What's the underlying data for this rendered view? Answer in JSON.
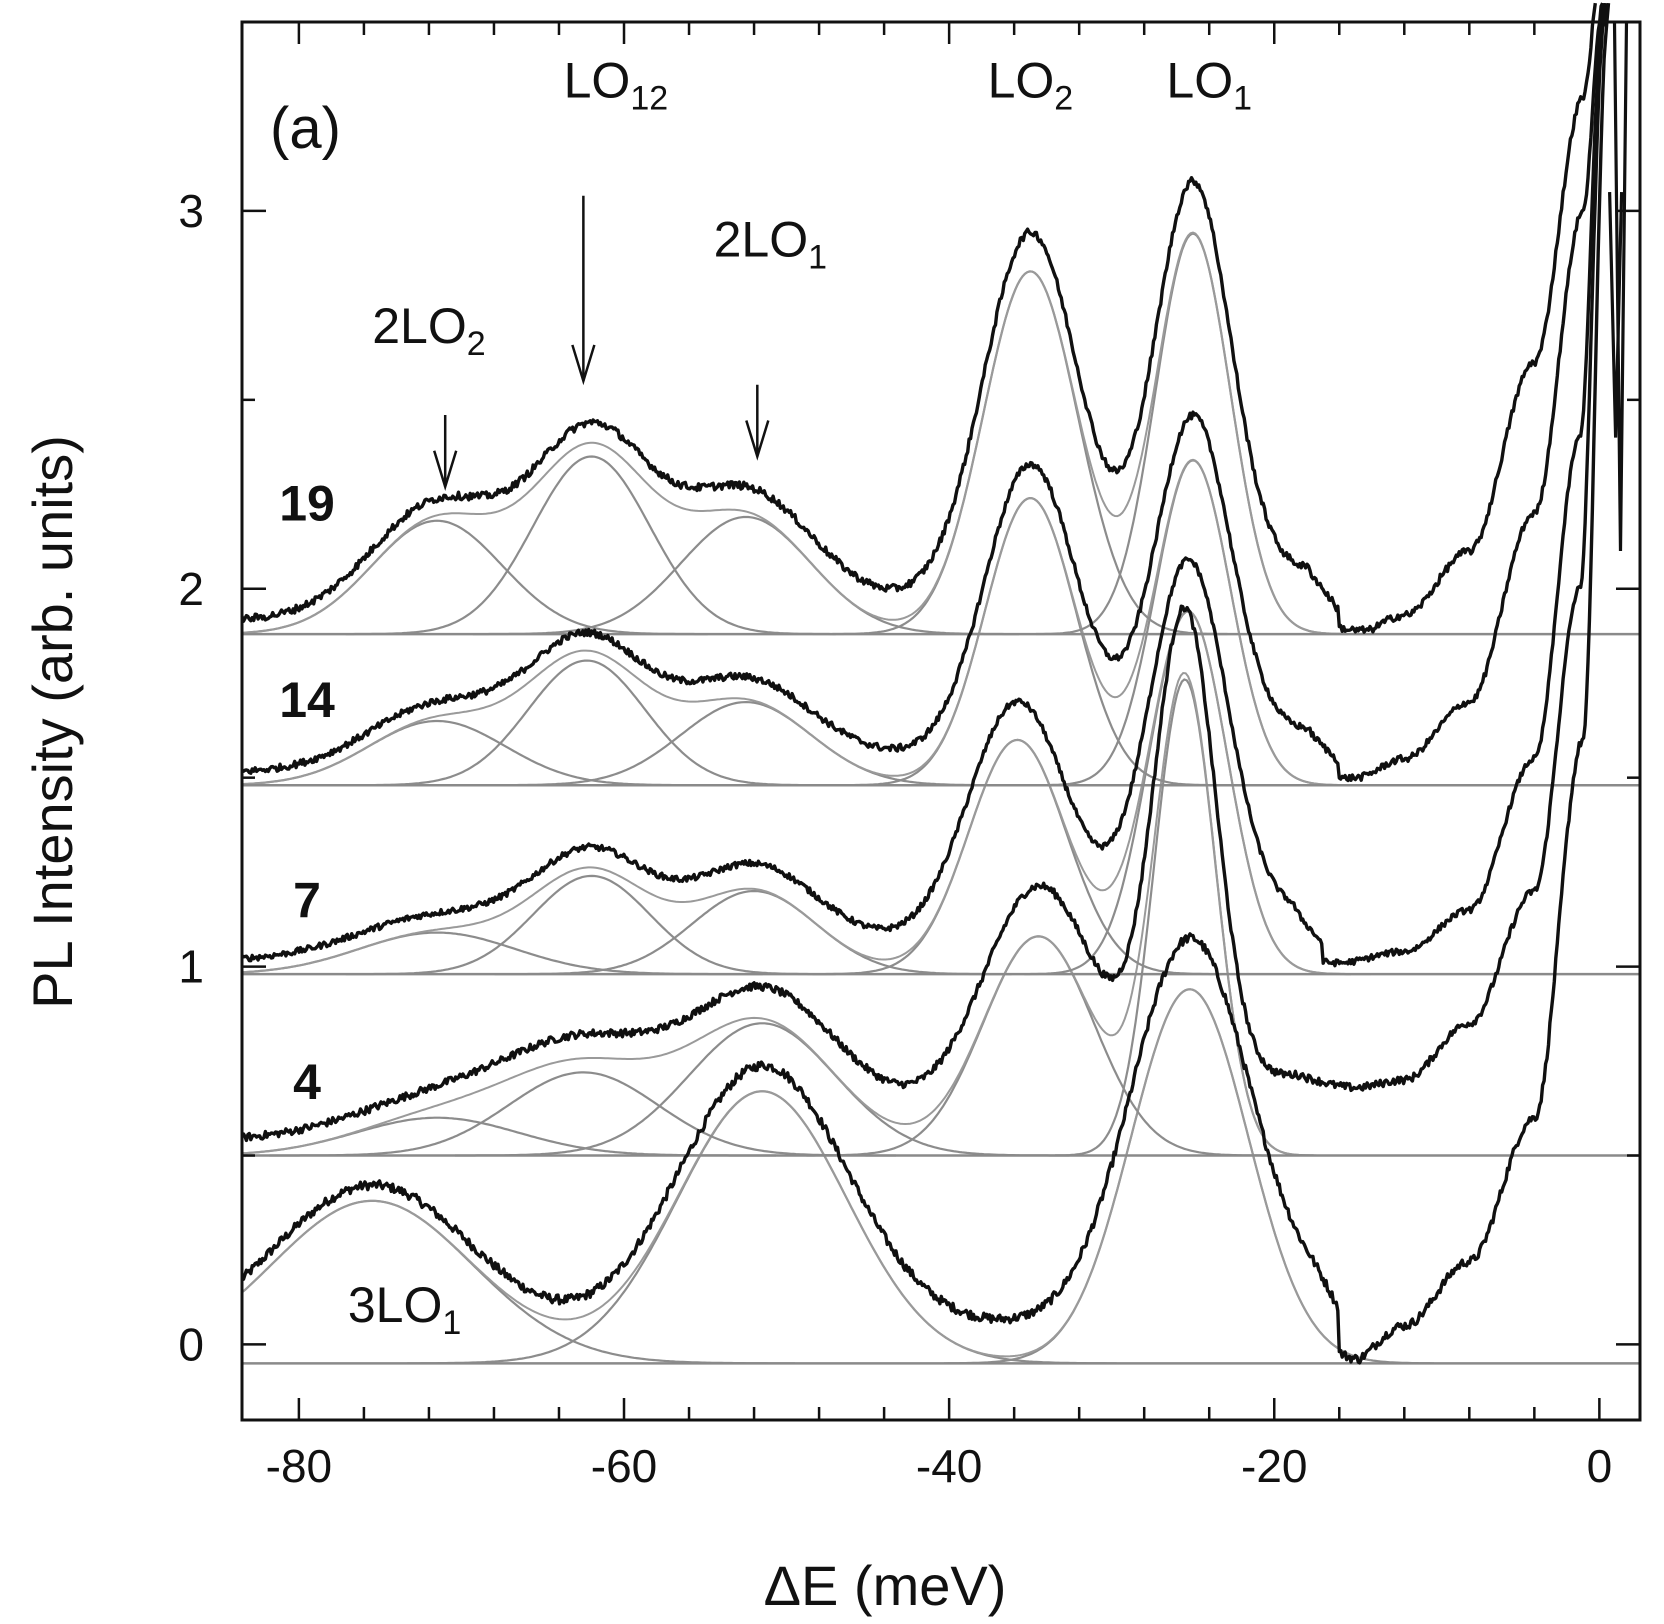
{
  "chart_data": {
    "type": "line",
    "panel_label": "(a)",
    "xlabel": "ΔE (meV)",
    "ylabel": "PL Intensity (arb. units)",
    "xlim": [
      -83.5,
      2.5
    ],
    "ylim": [
      -0.2,
      3.5
    ],
    "x_ticks": [
      -80,
      -60,
      -40,
      -20,
      0
    ],
    "y_ticks": [
      0,
      1,
      2,
      3
    ],
    "x_tick_labels": [
      "-80",
      "-60",
      "-40",
      "-20",
      "0"
    ],
    "y_tick_labels": [
      "0",
      "1",
      "2",
      "3"
    ],
    "x_minor_step": 4,
    "series": [
      {
        "name": "3LO1",
        "label": "",
        "baseline": -0.05,
        "peaks": [
          {
            "name": "3LO1",
            "center": -75.5,
            "amp": 0.43,
            "width": 6.2
          },
          {
            "name": "2LO1",
            "center": -51.5,
            "amp": 0.72,
            "width": 5.2
          },
          {
            "name": "LO1",
            "center": -25.2,
            "amp": 0.99,
            "width": 3.6
          }
        ],
        "background": {
          "amp": 0.06,
          "decay": 4.0
        },
        "valley_profile": [
          [
            -18,
            0.0
          ],
          [
            -15.5,
            -0.05
          ],
          [
            -12,
            0.05
          ],
          [
            -8,
            0.22
          ],
          [
            -4,
            0.6
          ],
          [
            -1,
            1.6
          ],
          [
            0.5,
            3.5
          ]
        ],
        "noise": 0.012
      },
      {
        "name": "4",
        "label": "4",
        "baseline": 0.5,
        "peaks": [
          {
            "name": "2LO2",
            "center": -71.5,
            "amp": 0.1,
            "width": 5.0
          },
          {
            "name": "LO12",
            "center": -62.5,
            "amp": 0.22,
            "width": 4.6
          },
          {
            "name": "2LO1",
            "center": -51.5,
            "amp": 0.35,
            "width": 4.5
          },
          {
            "name": "LO2",
            "center": -34.5,
            "amp": 0.58,
            "width": 3.4
          },
          {
            "name": "LO1",
            "center": -25.5,
            "amp": 1.26,
            "width": 1.9
          }
        ],
        "background": {
          "amp": 0.08,
          "decay": 5.0
        },
        "valley_profile": [
          [
            -20,
            0.72
          ],
          [
            -15,
            0.68
          ],
          [
            -12,
            0.7
          ],
          [
            -8,
            0.85
          ],
          [
            -4,
            1.2
          ],
          [
            -1.2,
            2.0
          ],
          [
            0.3,
            3.5
          ]
        ],
        "noise": 0.01
      },
      {
        "name": "7",
        "label": "7",
        "baseline": 0.98,
        "peaks": [
          {
            "name": "2LO2",
            "center": -71.5,
            "amp": 0.11,
            "width": 4.8
          },
          {
            "name": "LO12",
            "center": -62.0,
            "amp": 0.26,
            "width": 3.6
          },
          {
            "name": "2LO1",
            "center": -52.0,
            "amp": 0.22,
            "width": 3.8
          },
          {
            "name": "LO2",
            "center": -35.8,
            "amp": 0.62,
            "width": 3.0
          },
          {
            "name": "LO1",
            "center": -25.3,
            "amp": 0.96,
            "width": 2.4
          }
        ],
        "background": {
          "amp": 0.06,
          "decay": 4.5
        },
        "valley_profile": [
          [
            -19,
            1.02
          ],
          [
            -16,
            1.01
          ],
          [
            -12,
            1.04
          ],
          [
            -8,
            1.15
          ],
          [
            -4,
            1.55
          ],
          [
            -1.2,
            2.4
          ],
          [
            0.2,
            3.5
          ]
        ],
        "noise": 0.008
      },
      {
        "name": "14",
        "label": "14",
        "baseline": 1.48,
        "peaks": [
          {
            "name": "2LO2",
            "center": -71.5,
            "amp": 0.17,
            "width": 4.2
          },
          {
            "name": "LO12",
            "center": -62.3,
            "amp": 0.33,
            "width": 3.6
          },
          {
            "name": "2LO1",
            "center": -52.5,
            "amp": 0.22,
            "width": 4.0
          },
          {
            "name": "LO2",
            "center": -35.0,
            "amp": 0.76,
            "width": 2.8
          },
          {
            "name": "LO1",
            "center": -25.0,
            "amp": 0.86,
            "width": 2.3
          }
        ],
        "background": {
          "amp": 0.05,
          "decay": 4.5
        },
        "valley_profile": [
          [
            -18,
            1.49
          ],
          [
            -15,
            1.5
          ],
          [
            -12,
            1.55
          ],
          [
            -8,
            1.7
          ],
          [
            -4,
            2.2
          ],
          [
            -1.0,
            3.0
          ],
          [
            0.1,
            3.5
          ]
        ],
        "noise": 0.009
      },
      {
        "name": "19",
        "label": "19",
        "baseline": 1.88,
        "peaks": [
          {
            "name": "2LO2",
            "center": -71.5,
            "amp": 0.3,
            "width": 4.0
          },
          {
            "name": "LO12",
            "center": -62.0,
            "amp": 0.47,
            "width": 3.6
          },
          {
            "name": "2LO1",
            "center": -52.5,
            "amp": 0.31,
            "width": 4.0
          },
          {
            "name": "LO2",
            "center": -35.0,
            "amp": 0.96,
            "width": 2.9
          },
          {
            "name": "LO1",
            "center": -25.0,
            "amp": 1.06,
            "width": 2.3
          }
        ],
        "background": {
          "amp": 0.06,
          "decay": 4.0
        },
        "valley_profile": [
          [
            -18,
            1.89
          ],
          [
            -15,
            1.88
          ],
          [
            -12,
            1.93
          ],
          [
            -8,
            2.1
          ],
          [
            -4,
            2.6
          ],
          [
            -1.0,
            3.3
          ],
          [
            0.0,
            3.6
          ]
        ],
        "noise": 0.01
      }
    ],
    "annotations": [
      {
        "text": "LO",
        "sub": "12",
        "x": -60.5,
        "y": 3.3,
        "arrow_x": -62.5,
        "arrow_from": 2.4,
        "arrow_to": 2.55
      },
      {
        "text": "2LO",
        "sub": "1",
        "x": -51.0,
        "y": 2.88,
        "arrow_x": -51.8,
        "arrow_from": 2.54,
        "arrow_to": 2.35
      },
      {
        "text": "2LO",
        "sub": "2",
        "x": -72.0,
        "y": 2.65,
        "arrow_x": -71.0,
        "arrow_from": 2.46,
        "arrow_to": 2.27
      },
      {
        "text": "LO",
        "sub": "2",
        "x": -35.0,
        "y": 3.3
      },
      {
        "text": "LO",
        "sub": "1",
        "x": -24.0,
        "y": 3.3
      },
      {
        "text": "3LO",
        "sub": "1",
        "x": -73.5,
        "y": 0.06
      }
    ],
    "right_edge_features": [
      {
        "x": 1.3,
        "y_top": 3.5,
        "y_bottom": 2.1
      },
      {
        "x": 1.0,
        "y_top": 3.05,
        "y_bottom": 2.4
      }
    ]
  }
}
